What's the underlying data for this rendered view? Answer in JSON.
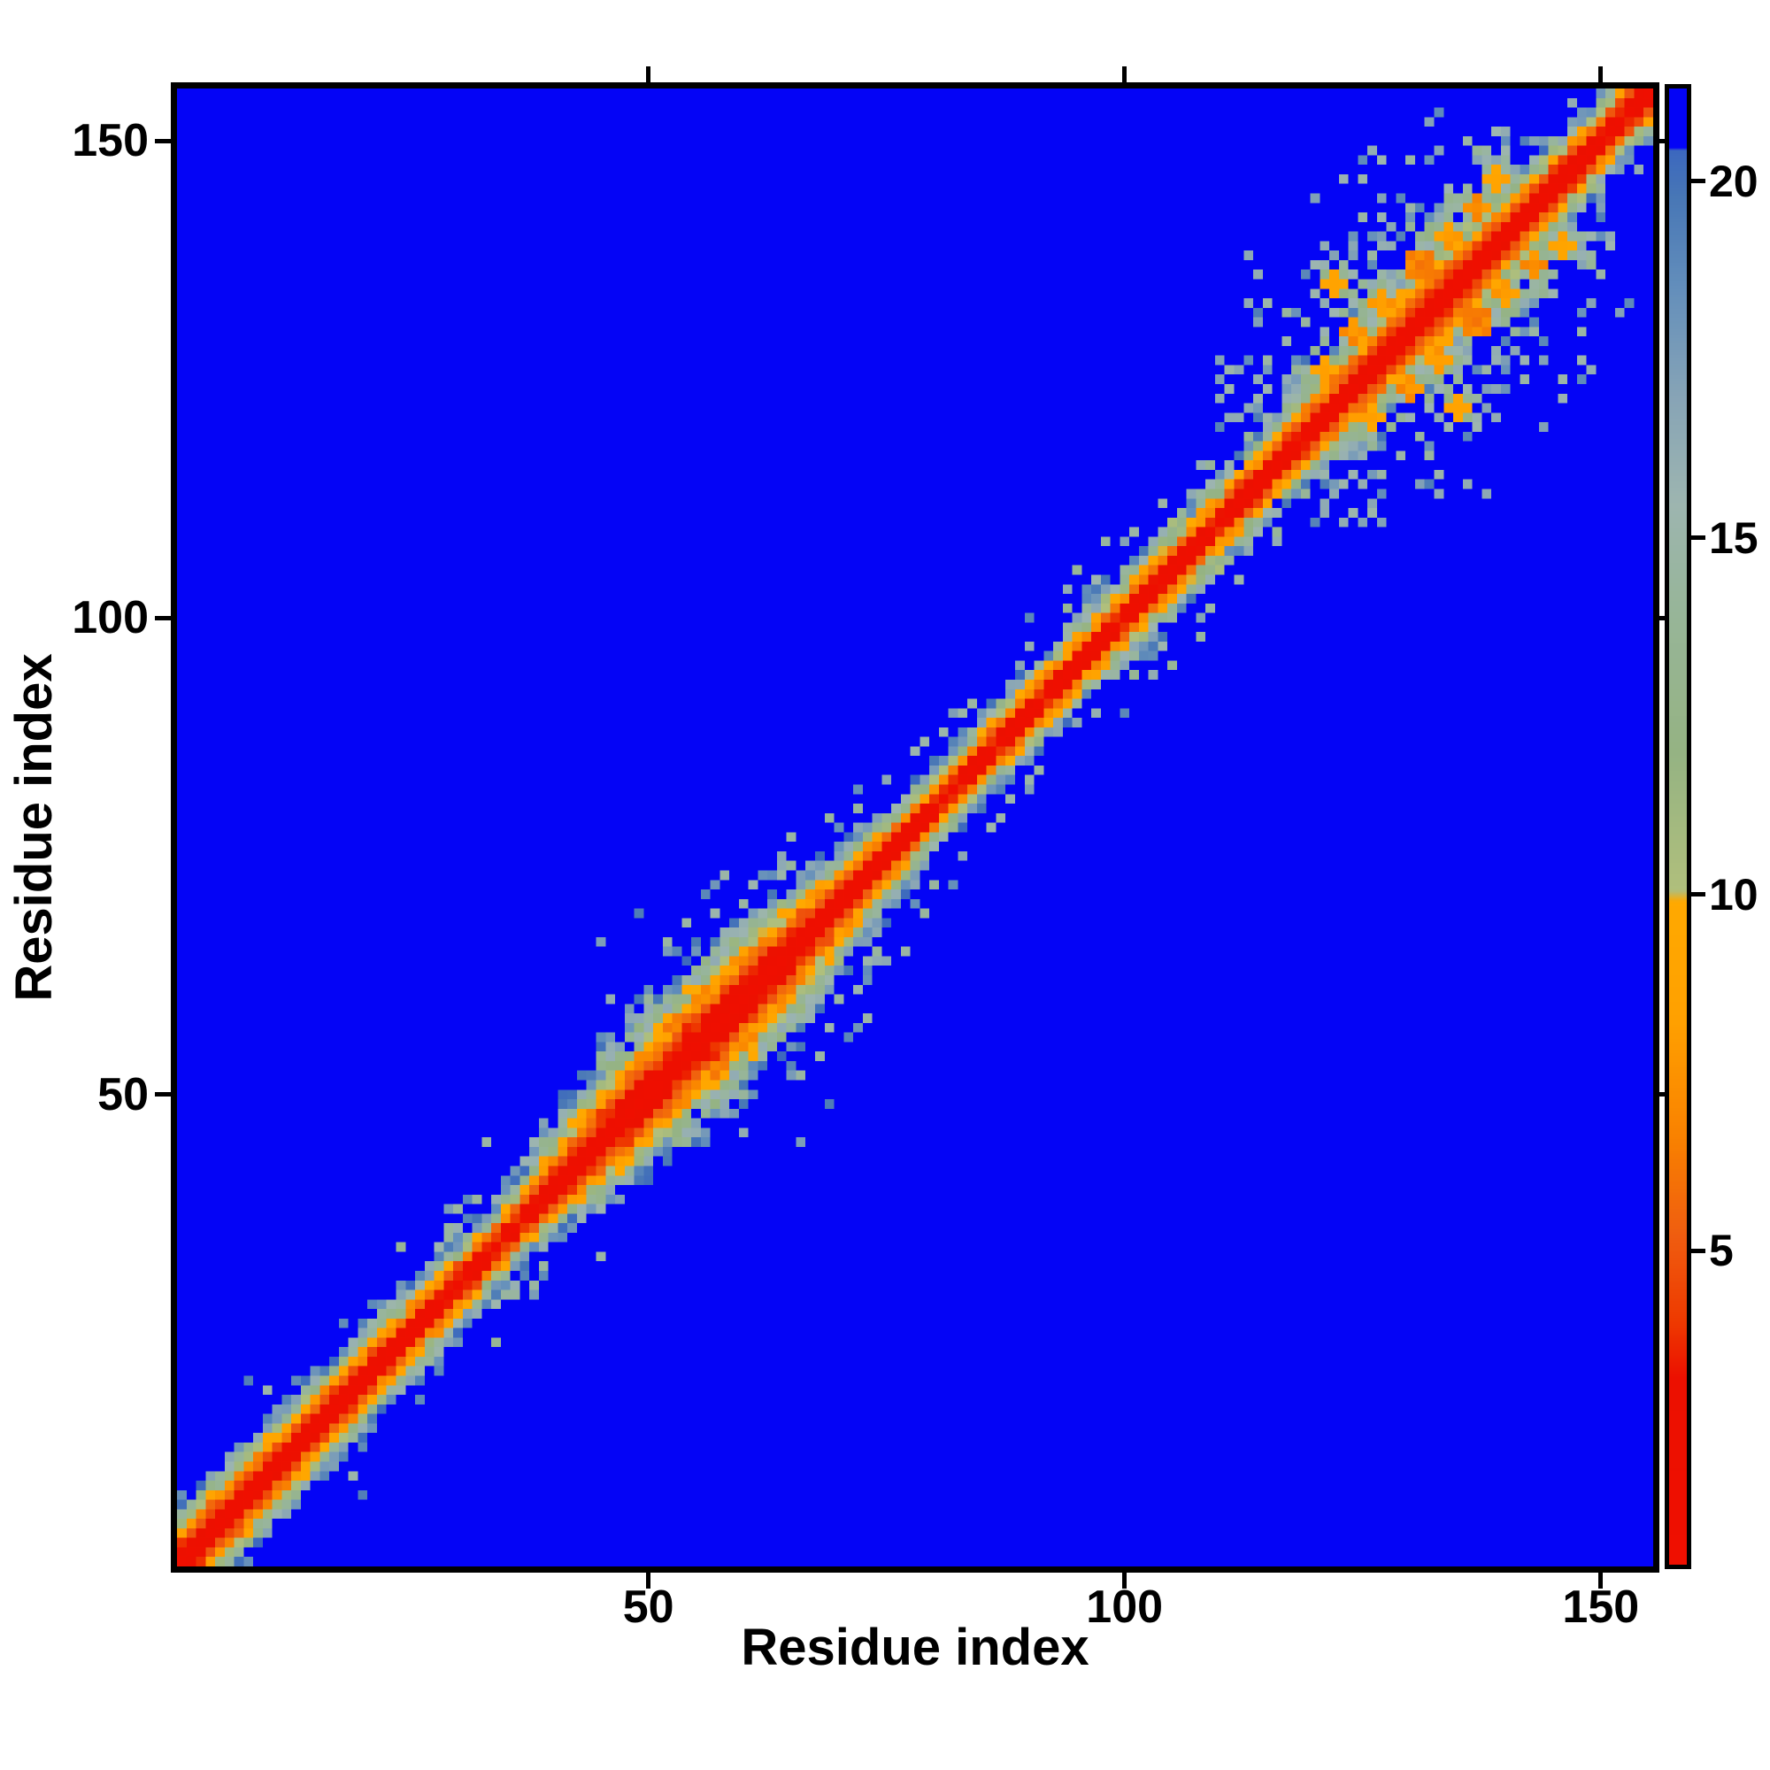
{
  "axes": {
    "xlabel": "Residue index",
    "ylabel": "Residue index",
    "x_ticks": [
      "50",
      "100",
      "150"
    ],
    "y_ticks": [
      "50",
      "100",
      "150"
    ],
    "x_tick_values": [
      50,
      100,
      150
    ],
    "y_tick_values": [
      50,
      100,
      150
    ]
  },
  "colorbar": {
    "tick_labels": [
      "5",
      "10",
      "15",
      "20"
    ],
    "tick_values": [
      5,
      10,
      15,
      20
    ],
    "vmin": 0.6,
    "vmax": 21.3,
    "over_threshold": 20.45,
    "over_color": "#0404f6"
  },
  "chart_data": {
    "type": "heatmap",
    "title": "",
    "xlabel": "Residue index",
    "ylabel": "Residue index",
    "x_range": [
      1,
      155
    ],
    "y_range": [
      1,
      155
    ],
    "n_residues": 155,
    "value_range": [
      0.6,
      21.3
    ],
    "legend": "colorbar right, values ~0.6 (red) to ~21.3 (blue), background above 20.45 is solid blue",
    "description": "Symmetric 155x155 residue-residue distance map. Red zero-distance diagonal flanked by orange then pale sage-green then slate-blue bands over a solid blue far-distance background. Band is narrow for residues 1-35, widest (half-width ~10) for residues 42-66, narrow 74-115 with short off-diagonal hairpin contacts near 75-95, and a broad noisy contact cluster with orange off-diagonal blobs for residues 118-146.",
    "colormap_stops": [
      [
        0.6,
        "#ef0f00"
      ],
      [
        3.2,
        "#ec1000"
      ],
      [
        4.0,
        "#ee3a00"
      ],
      [
        5.2,
        "#ef5d10"
      ],
      [
        6.6,
        "#f98200"
      ],
      [
        8.2,
        "#ffa000"
      ],
      [
        9.9,
        "#ffa900"
      ],
      [
        10.05,
        "#b0bf7c"
      ],
      [
        12.0,
        "#95b383"
      ],
      [
        14.0,
        "#97b599"
      ],
      [
        15.5,
        "#9db5b0"
      ],
      [
        17.0,
        "#87a4b6"
      ],
      [
        18.5,
        "#648fbb"
      ],
      [
        19.8,
        "#4877b6"
      ],
      [
        20.45,
        "#3c68bf"
      ]
    ],
    "generator": {
      "seed": 42,
      "width_profile": [
        [
          1,
          7.0
        ],
        [
          12,
          6.2
        ],
        [
          22,
          5.8
        ],
        [
          30,
          5.2
        ],
        [
          36,
          4.8
        ],
        [
          42,
          7.0
        ],
        [
          48,
          9.2
        ],
        [
          55,
          10.3
        ],
        [
          60,
          10.0
        ],
        [
          66,
          8.2
        ],
        [
          72,
          6.2
        ],
        [
          78,
          5.0
        ],
        [
          84,
          4.8
        ],
        [
          90,
          5.1
        ],
        [
          97,
          5.3
        ],
        [
          103,
          5.6
        ],
        [
          109,
          5.2
        ],
        [
          114,
          5.8
        ],
        [
          119,
          6.3
        ],
        [
          125,
          7.0
        ],
        [
          132,
          7.6
        ],
        [
          138,
          7.0
        ],
        [
          144,
          6.2
        ],
        [
          149,
          5.2
        ],
        [
          155,
          5.6
        ]
      ],
      "speckle_zones": [
        {
          "k0": 116,
          "k1": 147,
          "p1": 0.3,
          "t1": 2.0,
          "p2": 0.1,
          "t2": 3.2
        },
        {
          "k0": 28,
          "k1": 42,
          "p1": 0.16,
          "t1": 1.9,
          "p2": 0.03,
          "t2": 2.4
        },
        {
          "k0": 55,
          "k1": 75,
          "p1": 0.12,
          "t1": 1.6,
          "p2": 0.02,
          "t2": 2.2
        },
        {
          "k0": 95,
          "k1": 115,
          "p1": 0.12,
          "t1": 1.7,
          "p2": 0.02,
          "t2": 2.2
        }
      ],
      "hairpin_segments": [
        {
          "i0": 74,
          "i1": 85,
          "off": 8,
          "jit": 2,
          "p": 0.55,
          "val": 15.5
        },
        {
          "i0": 86,
          "i1": 95,
          "off": 7,
          "jit": 2,
          "p": 0.45,
          "val": 16
        },
        {
          "i0": 60,
          "i1": 72,
          "off": 11,
          "jit": 3,
          "p": 0.3,
          "val": 16.5
        },
        {
          "i0": 100,
          "i1": 107,
          "off": 5,
          "jit": 1,
          "p": 0.5,
          "val": 12.5
        },
        {
          "i0": 36,
          "i1": 44,
          "off": 8,
          "jit": 2,
          "p": 0.35,
          "val": 16
        }
      ],
      "contact_blobs": [
        {
          "i": 124,
          "j": 130,
          "r": 1.4,
          "v": 6.5
        },
        {
          "i": 127,
          "j": 133,
          "r": 1.2,
          "v": 7.0
        },
        {
          "i": 131,
          "j": 137,
          "r": 1.5,
          "v": 6.0
        },
        {
          "i": 134,
          "j": 140,
          "r": 1.2,
          "v": 7.5
        },
        {
          "i": 137,
          "j": 143,
          "r": 1.4,
          "v": 6.5
        },
        {
          "i": 121,
          "j": 126,
          "r": 1.2,
          "v": 8.0
        },
        {
          "i": 139,
          "j": 146,
          "r": 1.1,
          "v": 8.0
        },
        {
          "i": 122,
          "j": 135,
          "r": 1.0,
          "v": 8.5
        }
      ]
    }
  }
}
